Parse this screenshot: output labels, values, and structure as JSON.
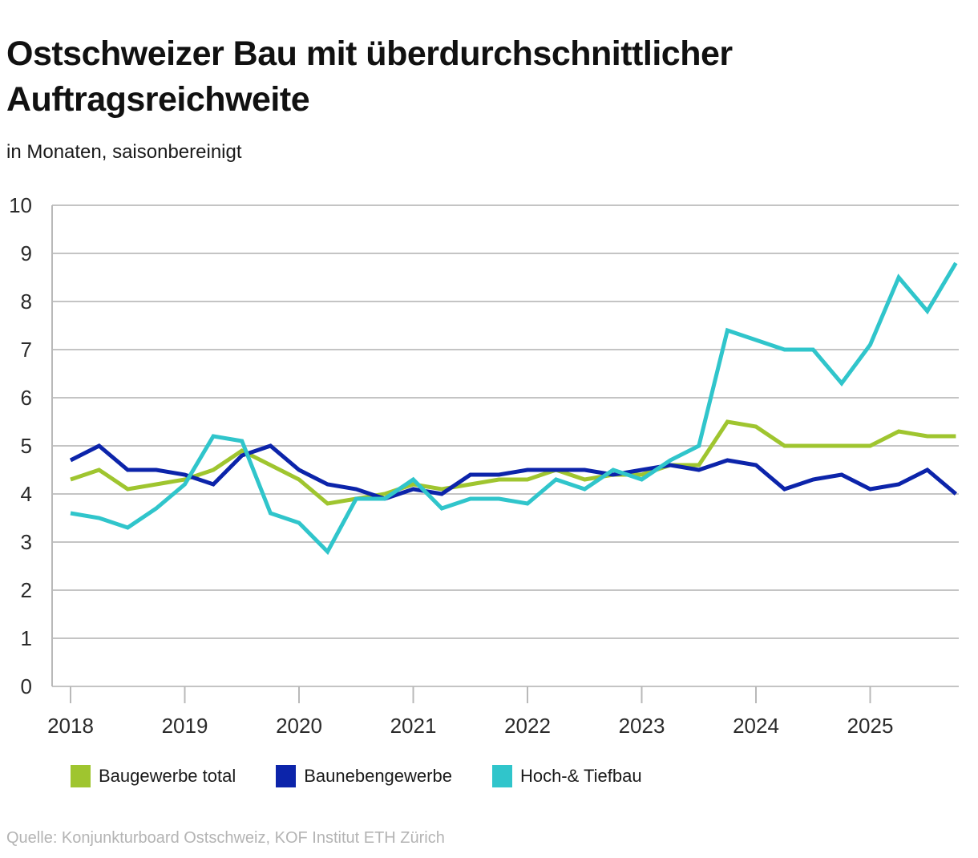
{
  "header": {
    "title": "Ostschweizer Bau mit überdurchschnittlicher Auftragsreichweite",
    "subtitle": "in Monaten, saisonbereinigt"
  },
  "source": "Quelle: Konjunkturboard Ostschweiz, KOF Institut ETH Zürich",
  "colors": {
    "grid": "#c4c4c4",
    "axis": "#b9b9b9",
    "tick_label": "#2b2b2b"
  },
  "chart_data": {
    "type": "line",
    "title": "Ostschweizer Bau mit überdurchschnittlicher Auftragsreichweite",
    "subtitle": "in Monaten, saisonbereinigt",
    "x_frequency": "quarterly",
    "x_year_labels": [
      "2018",
      "2019",
      "2020",
      "2021",
      "2022",
      "2023",
      "2024",
      "2025"
    ],
    "ylim": [
      0,
      10
    ],
    "yticks": [
      0,
      1,
      2,
      3,
      4,
      5,
      6,
      7,
      8,
      9,
      10
    ],
    "grid": true,
    "legend_position": "bottom",
    "series": [
      {
        "name": "Baugewerbe total",
        "color": "#9fc52f",
        "values": [
          4.3,
          4.5,
          4.1,
          4.2,
          4.3,
          4.5,
          4.9,
          4.6,
          4.3,
          3.8,
          3.9,
          4.0,
          4.2,
          4.1,
          4.2,
          4.3,
          4.3,
          4.5,
          4.3,
          4.4,
          4.4,
          4.6,
          4.6,
          5.5,
          5.4,
          5.0,
          5.0,
          5.0,
          5.0,
          5.3,
          5.2,
          5.2
        ]
      },
      {
        "name": "Baunebengewerbe",
        "color": "#0c24aa",
        "values": [
          4.7,
          5.0,
          4.5,
          4.5,
          4.4,
          4.2,
          4.8,
          5.0,
          4.5,
          4.2,
          4.1,
          3.9,
          4.1,
          4.0,
          4.4,
          4.4,
          4.5,
          4.5,
          4.5,
          4.4,
          4.5,
          4.6,
          4.5,
          4.7,
          4.6,
          4.1,
          4.3,
          4.4,
          4.1,
          4.2,
          4.5,
          4.0
        ]
      },
      {
        "name": "Hoch-& Tiefbau",
        "color": "#30c5cb",
        "values": [
          3.6,
          3.5,
          3.3,
          3.7,
          4.2,
          5.2,
          5.1,
          3.6,
          3.4,
          2.8,
          3.9,
          3.9,
          4.3,
          3.7,
          3.9,
          3.9,
          3.8,
          4.3,
          4.1,
          4.5,
          4.3,
          4.7,
          5.0,
          7.4,
          7.2,
          7.0,
          7.0,
          6.3,
          7.1,
          8.5,
          7.8,
          8.8
        ]
      }
    ]
  }
}
